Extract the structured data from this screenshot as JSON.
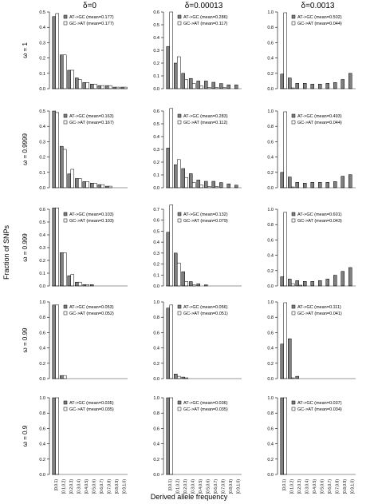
{
  "figure": {
    "ylabel": "Fraction of SNPs",
    "xlabel": "Derived allele frequency",
    "column_headers": [
      "δ=0",
      "δ=0.00013",
      "δ=0.0013"
    ],
    "row_labels": [
      "ω = 1",
      "ω = 0.9999",
      "ω = 0.999",
      "ω = 0.99",
      "ω = 0.9"
    ],
    "legend_entries": [
      "AT->GC",
      "GC->AT"
    ],
    "colors": {
      "AT->GC": "#808080",
      "GC->AT": "#ffffff",
      "axis": "#000000"
    }
  },
  "chart_data": [
    {
      "type": "bar",
      "row": 0,
      "col": 0,
      "ylim": [
        0,
        0.5
      ],
      "yticks": [
        0.0,
        0.1,
        0.2,
        0.3,
        0.4,
        0.5
      ],
      "legend": [
        "AT->GC (mean=0.177)",
        "GC->AT (mean=0.177)"
      ],
      "categories": [
        "[0,0.1)",
        "[0.1,0.2)",
        "[0.2,0.3)",
        "[0.3,0.4)",
        "[0.4,0.5)",
        "[0.5,0.6)",
        "[0.6,0.7)",
        "[0.7,0.8)",
        "[0.8,0.9)",
        "[0.9,1.0)"
      ],
      "series": [
        {
          "name": "AT->GC",
          "values": [
            0.47,
            0.22,
            0.12,
            0.07,
            0.04,
            0.03,
            0.02,
            0.02,
            0.01,
            0.01
          ]
        },
        {
          "name": "GC->AT",
          "values": [
            0.49,
            0.22,
            0.12,
            0.06,
            0.04,
            0.03,
            0.02,
            0.02,
            0.01,
            0.01
          ]
        }
      ]
    },
    {
      "type": "bar",
      "row": 0,
      "col": 1,
      "ylim": [
        0,
        0.6
      ],
      "yticks": [
        0.0,
        0.1,
        0.2,
        0.3,
        0.4,
        0.5,
        0.6
      ],
      "legend": [
        "AT->GC (mean=0.286)",
        "GC->AT (mean=0.117)"
      ],
      "categories": [
        "[0,0.1)",
        "[0.1,0.2)",
        "[0.2,0.3)",
        "[0.3,0.4)",
        "[0.4,0.5)",
        "[0.5,0.6)",
        "[0.6,0.7)",
        "[0.7,0.8)",
        "[0.8,0.9)",
        "[0.9,1.0)"
      ],
      "series": [
        {
          "name": "AT->GC",
          "values": [
            0.33,
            0.2,
            0.12,
            0.08,
            0.06,
            0.06,
            0.05,
            0.04,
            0.03,
            0.03
          ]
        },
        {
          "name": "GC->AT",
          "values": [
            0.6,
            0.25,
            0.07,
            0.04,
            0.02,
            0.01,
            0.01,
            0.01,
            0.0,
            0.0
          ]
        }
      ]
    },
    {
      "type": "bar",
      "row": 0,
      "col": 2,
      "ylim": [
        0,
        1.0
      ],
      "yticks": [
        0.0,
        0.2,
        0.4,
        0.6,
        0.8,
        1.0
      ],
      "legend": [
        "AT->GC (mean=0.502)",
        "GC->AT (mean=0.044)"
      ],
      "categories": [
        "[0,0.1)",
        "[0.1,0.2)",
        "[0.2,0.3)",
        "[0.3,0.4)",
        "[0.4,0.5)",
        "[0.5,0.6)",
        "[0.6,0.7)",
        "[0.7,0.8)",
        "[0.8,0.9)",
        "[0.9,1.0)"
      ],
      "series": [
        {
          "name": "AT->GC",
          "values": [
            0.19,
            0.14,
            0.07,
            0.07,
            0.06,
            0.06,
            0.07,
            0.08,
            0.12,
            0.2
          ]
        },
        {
          "name": "GC->AT",
          "values": [
            0.99,
            0.01,
            0.0,
            0.0,
            0.0,
            0.0,
            0.0,
            0.0,
            0.0,
            0.0
          ]
        }
      ]
    },
    {
      "type": "bar",
      "row": 1,
      "col": 0,
      "ylim": [
        0,
        0.5
      ],
      "yticks": [
        0.0,
        0.1,
        0.2,
        0.3,
        0.4,
        0.5
      ],
      "legend": [
        "AT->GC (mean=0.163)",
        "GC->AT (mean=0.167)"
      ],
      "categories": [
        "[0,0.1)",
        "[0.1,0.2)",
        "[0.2,0.3)",
        "[0.3,0.4)",
        "[0.4,0.5)",
        "[0.5,0.6)",
        "[0.6,0.7)",
        "[0.7,0.8)",
        "[0.8,0.9)",
        "[0.9,1.0)"
      ],
      "series": [
        {
          "name": "AT->GC",
          "values": [
            0.5,
            0.27,
            0.09,
            0.06,
            0.04,
            0.03,
            0.02,
            0.01,
            0.0,
            0.0
          ]
        },
        {
          "name": "GC->AT",
          "values": [
            0.49,
            0.25,
            0.12,
            0.06,
            0.04,
            0.03,
            0.02,
            0.01,
            0.0,
            0.0
          ]
        }
      ]
    },
    {
      "type": "bar",
      "row": 1,
      "col": 1,
      "ylim": [
        0,
        0.6
      ],
      "yticks": [
        0.0,
        0.1,
        0.2,
        0.3,
        0.4,
        0.5,
        0.6
      ],
      "legend": [
        "AT->GC (mean=0.283)",
        "GC->AT (mean=0.112)"
      ],
      "categories": [
        "[0,0.1)",
        "[0.1,0.2)",
        "[0.2,0.3)",
        "[0.3,0.4)",
        "[0.4,0.5)",
        "[0.5,0.6)",
        "[0.6,0.7)",
        "[0.7,0.8)",
        "[0.8,0.9)",
        "[0.9,1.0)"
      ],
      "series": [
        {
          "name": "AT->GC",
          "values": [
            0.31,
            0.18,
            0.15,
            0.11,
            0.06,
            0.05,
            0.05,
            0.04,
            0.03,
            0.02
          ]
        },
        {
          "name": "GC->AT",
          "values": [
            0.62,
            0.22,
            0.08,
            0.04,
            0.02,
            0.01,
            0.01,
            0.0,
            0.0,
            0.0
          ]
        }
      ]
    },
    {
      "type": "bar",
      "row": 1,
      "col": 2,
      "ylim": [
        0,
        1.0
      ],
      "yticks": [
        0.0,
        0.2,
        0.4,
        0.6,
        0.8,
        1.0
      ],
      "legend": [
        "AT->GC (mean=0.493)",
        "GC->AT (mean=0.044)"
      ],
      "categories": [
        "[0,0.1)",
        "[0.1,0.2)",
        "[0.2,0.3)",
        "[0.3,0.4)",
        "[0.4,0.5)",
        "[0.5,0.6)",
        "[0.6,0.7)",
        "[0.7,0.8)",
        "[0.8,0.9)",
        "[0.9,1.0)"
      ],
      "series": [
        {
          "name": "AT->GC",
          "values": [
            0.2,
            0.14,
            0.07,
            0.06,
            0.07,
            0.07,
            0.07,
            0.08,
            0.15,
            0.17
          ]
        },
        {
          "name": "GC->AT",
          "values": [
            0.99,
            0.01,
            0.0,
            0.0,
            0.0,
            0.0,
            0.0,
            0.0,
            0.0,
            0.0
          ]
        }
      ]
    },
    {
      "type": "bar",
      "row": 2,
      "col": 0,
      "ylim": [
        0,
        0.6
      ],
      "yticks": [
        0.0,
        0.1,
        0.2,
        0.3,
        0.4,
        0.5,
        0.6
      ],
      "legend": [
        "AT->GC (mean=0.103)",
        "GC->AT (mean=0.103)"
      ],
      "categories": [
        "[0,0.1)",
        "[0.1,0.2)",
        "[0.2,0.3)",
        "[0.3,0.4)",
        "[0.4,0.5)",
        "[0.5,0.6)",
        "[0.6,0.7)",
        "[0.7,0.8)",
        "[0.8,0.9)",
        "[0.9,1.0)"
      ],
      "series": [
        {
          "name": "AT->GC",
          "values": [
            0.61,
            0.26,
            0.08,
            0.03,
            0.01,
            0.01,
            0.0,
            0.0,
            0.0,
            0.0
          ]
        },
        {
          "name": "GC->AT",
          "values": [
            0.61,
            0.26,
            0.09,
            0.03,
            0.01,
            0.0,
            0.0,
            0.0,
            0.0,
            0.0
          ]
        }
      ]
    },
    {
      "type": "bar",
      "row": 2,
      "col": 1,
      "ylim": [
        0,
        0.7
      ],
      "yticks": [
        0.0,
        0.1,
        0.2,
        0.3,
        0.4,
        0.5,
        0.6,
        0.7
      ],
      "legend": [
        "AT->GC (mean=0.132)",
        "GC->AT (mean=0.079)"
      ],
      "categories": [
        "[0,0.1)",
        "[0.1,0.2)",
        "[0.2,0.3)",
        "[0.3,0.4)",
        "[0.4,0.5)",
        "[0.5,0.6)",
        "[0.6,0.7)",
        "[0.7,0.8)",
        "[0.8,0.9)",
        "[0.9,1.0)"
      ],
      "series": [
        {
          "name": "AT->GC",
          "values": [
            0.49,
            0.3,
            0.13,
            0.04,
            0.02,
            0.01,
            0.0,
            0.0,
            0.0,
            0.0
          ]
        },
        {
          "name": "GC->AT",
          "values": [
            0.74,
            0.21,
            0.04,
            0.01,
            0.0,
            0.0,
            0.0,
            0.0,
            0.0,
            0.0
          ]
        }
      ]
    },
    {
      "type": "bar",
      "row": 2,
      "col": 2,
      "ylim": [
        0,
        1.0
      ],
      "yticks": [
        0.0,
        0.2,
        0.4,
        0.6,
        0.8,
        1.0
      ],
      "legend": [
        "AT->GC (mean=0.601)",
        "GC->AT (mean=0.043)"
      ],
      "categories": [
        "[0,0.1)",
        "[0.1,0.2)",
        "[0.2,0.3)",
        "[0.3,0.4)",
        "[0.4,0.5)",
        "[0.5,0.6)",
        "[0.6,0.7)",
        "[0.7,0.8)",
        "[0.8,0.9)",
        "[0.9,1.0)"
      ],
      "series": [
        {
          "name": "AT->GC",
          "values": [
            0.12,
            0.09,
            0.07,
            0.06,
            0.06,
            0.07,
            0.09,
            0.14,
            0.19,
            0.24
          ]
        },
        {
          "name": "GC->AT",
          "values": [
            0.96,
            0.03,
            0.01,
            0.0,
            0.0,
            0.0,
            0.0,
            0.0,
            0.0,
            0.0
          ]
        }
      ]
    },
    {
      "type": "bar",
      "row": 3,
      "col": 0,
      "ylim": [
        0,
        1.0
      ],
      "yticks": [
        0.0,
        0.2,
        0.4,
        0.6,
        0.8,
        1.0
      ],
      "legend": [
        "AT->GC (mean=0.053)",
        "GC->AT (mean=0.052)"
      ],
      "categories": [
        "[0,0.1)",
        "[0.1,0.2)",
        "[0.2,0.3)",
        "[0.3,0.4)",
        "[0.4,0.5)",
        "[0.5,0.6)",
        "[0.6,0.7)",
        "[0.7,0.8)",
        "[0.8,0.9)",
        "[0.9,1.0)"
      ],
      "series": [
        {
          "name": "AT->GC",
          "values": [
            0.96,
            0.04,
            0.0,
            0.0,
            0.0,
            0.0,
            0.0,
            0.0,
            0.0,
            0.0
          ]
        },
        {
          "name": "GC->AT",
          "values": [
            0.96,
            0.04,
            0.0,
            0.0,
            0.0,
            0.0,
            0.0,
            0.0,
            0.0,
            0.0
          ]
        }
      ]
    },
    {
      "type": "bar",
      "row": 3,
      "col": 1,
      "ylim": [
        0,
        1.0
      ],
      "yticks": [
        0.0,
        0.2,
        0.4,
        0.6,
        0.8,
        1.0
      ],
      "legend": [
        "AT->GC (mean=0.056)",
        "GC->AT (mean=0.051)"
      ],
      "categories": [
        "[0,0.1)",
        "[0.1,0.2)",
        "[0.2,0.3)",
        "[0.3,0.4)",
        "[0.4,0.5)",
        "[0.5,0.6)",
        "[0.6,0.7)",
        "[0.7,0.8)",
        "[0.8,0.9)",
        "[0.9,1.0)"
      ],
      "series": [
        {
          "name": "AT->GC",
          "values": [
            0.92,
            0.06,
            0.02,
            0.0,
            0.0,
            0.0,
            0.0,
            0.0,
            0.0,
            0.0
          ]
        },
        {
          "name": "GC->AT",
          "values": [
            0.96,
            0.03,
            0.01,
            0.0,
            0.0,
            0.0,
            0.0,
            0.0,
            0.0,
            0.0
          ]
        }
      ]
    },
    {
      "type": "bar",
      "row": 3,
      "col": 2,
      "ylim": [
        0,
        1.0
      ],
      "yticks": [
        0.0,
        0.2,
        0.4,
        0.6,
        0.8,
        1.0
      ],
      "legend": [
        "AT->GC (mean=0.111)",
        "GC->AT (mean=0.041)"
      ],
      "categories": [
        "[0,0.1)",
        "[0.1,0.2)",
        "[0.2,0.3)",
        "[0.3,0.4)",
        "[0.4,0.5)",
        "[0.5,0.6)",
        "[0.6,0.7)",
        "[0.7,0.8)",
        "[0.8,0.9)",
        "[0.9,1.0)"
      ],
      "series": [
        {
          "name": "AT->GC",
          "values": [
            0.45,
            0.52,
            0.03,
            0.0,
            0.0,
            0.0,
            0.0,
            0.0,
            0.0,
            0.0
          ]
        },
        {
          "name": "GC->AT",
          "values": [
            0.99,
            0.01,
            0.0,
            0.0,
            0.0,
            0.0,
            0.0,
            0.0,
            0.0,
            0.0
          ]
        }
      ]
    },
    {
      "type": "bar",
      "row": 4,
      "col": 0,
      "ylim": [
        0,
        1.0
      ],
      "yticks": [
        0.0,
        0.2,
        0.4,
        0.6,
        0.8,
        1.0
      ],
      "legend": [
        "AT->GC (mean=0.035)",
        "GC->AT (mean=0.035)"
      ],
      "categories": [
        "[0,0.1)",
        "[0.1,0.2)",
        "[0.2,0.3)",
        "[0.3,0.4)",
        "[0.4,0.5)",
        "[0.5,0.6)",
        "[0.6,0.7)",
        "[0.7,0.8)",
        "[0.8,0.9)",
        "[0.9,1.0)"
      ],
      "series": [
        {
          "name": "AT->GC",
          "values": [
            1.0,
            0.0,
            0.0,
            0.0,
            0.0,
            0.0,
            0.0,
            0.0,
            0.0,
            0.0
          ]
        },
        {
          "name": "GC->AT",
          "values": [
            1.0,
            0.0,
            0.0,
            0.0,
            0.0,
            0.0,
            0.0,
            0.0,
            0.0,
            0.0
          ]
        }
      ]
    },
    {
      "type": "bar",
      "row": 4,
      "col": 1,
      "ylim": [
        0,
        1.0
      ],
      "yticks": [
        0.0,
        0.2,
        0.4,
        0.6,
        0.8,
        1.0
      ],
      "legend": [
        "AT->GC (mean=0.036)",
        "GC->AT (mean=0.035)"
      ],
      "categories": [
        "[0,0.1)",
        "[0.1,0.2)",
        "[0.2,0.3)",
        "[0.3,0.4)",
        "[0.4,0.5)",
        "[0.5,0.6)",
        "[0.6,0.7)",
        "[0.7,0.8)",
        "[0.8,0.9)",
        "[0.9,1.0)"
      ],
      "series": [
        {
          "name": "AT->GC",
          "values": [
            1.0,
            0.0,
            0.0,
            0.0,
            0.0,
            0.0,
            0.0,
            0.0,
            0.0,
            0.0
          ]
        },
        {
          "name": "GC->AT",
          "values": [
            1.0,
            0.0,
            0.0,
            0.0,
            0.0,
            0.0,
            0.0,
            0.0,
            0.0,
            0.0
          ]
        }
      ]
    },
    {
      "type": "bar",
      "row": 4,
      "col": 2,
      "ylim": [
        0,
        1.0
      ],
      "yticks": [
        0.0,
        0.2,
        0.4,
        0.6,
        0.8,
        1.0
      ],
      "legend": [
        "AT->GC (mean=0.037)",
        "GC->AT (mean=0.034)"
      ],
      "categories": [
        "[0,0.1)",
        "[0.1,0.2)",
        "[0.2,0.3)",
        "[0.3,0.4)",
        "[0.4,0.5)",
        "[0.5,0.6)",
        "[0.6,0.7)",
        "[0.7,0.8)",
        "[0.8,0.9)",
        "[0.9,1.0)"
      ],
      "series": [
        {
          "name": "AT->GC",
          "values": [
            1.0,
            0.0,
            0.0,
            0.0,
            0.0,
            0.0,
            0.0,
            0.0,
            0.0,
            0.0
          ]
        },
        {
          "name": "GC->AT",
          "values": [
            1.0,
            0.0,
            0.0,
            0.0,
            0.0,
            0.0,
            0.0,
            0.0,
            0.0,
            0.0
          ]
        }
      ]
    }
  ]
}
